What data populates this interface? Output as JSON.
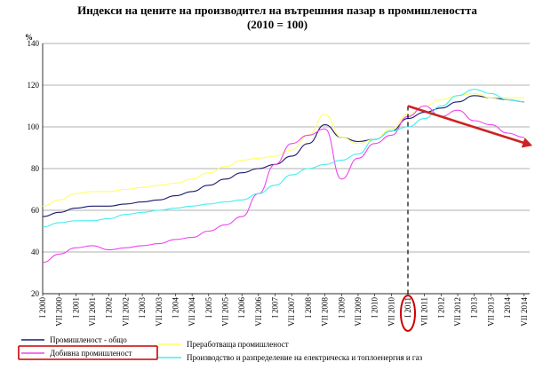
{
  "chart_data": {
    "type": "line",
    "title": "Индекси на цените на производител на вътрешния пазар в промишлеността",
    "subtitle": "(2010 = 100)",
    "ylabel": "%",
    "xlabel": "",
    "ylim": [
      20,
      140
    ],
    "yticks": [
      20,
      40,
      60,
      80,
      100,
      120,
      140
    ],
    "x_labels": [
      "I 2000",
      "VII 2000",
      "I 2001",
      "VII 2001",
      "I 2002",
      "VII 2002",
      "I 2003",
      "VII 2003",
      "I 2004",
      "VII 2004",
      "I 2005",
      "VII 2005",
      "I 2006",
      "VII 2006",
      "I 2007",
      "VII 2007",
      "I 2008",
      "VII 2008",
      "I 2009",
      "VII 2009",
      "I 2010",
      "VII 2010",
      "I 2011",
      "VII 2011",
      "I 2012",
      "VII 2012",
      "I 2013",
      "VII 2013",
      "I 2014",
      "VII 2014"
    ],
    "x": [
      "2000-01",
      "2000-07",
      "2001-01",
      "2001-07",
      "2002-01",
      "2002-07",
      "2003-01",
      "2003-07",
      "2004-01",
      "2004-07",
      "2005-01",
      "2005-07",
      "2006-01",
      "2006-07",
      "2007-01",
      "2007-07",
      "2008-01",
      "2008-07",
      "2009-01",
      "2009-07",
      "2010-01",
      "2010-07",
      "2011-01",
      "2011-07",
      "2012-01",
      "2012-07",
      "2013-01",
      "2013-07",
      "2014-01",
      "2014-07"
    ],
    "grid": true,
    "legend_position": "bottom",
    "series": [
      {
        "name": "Промишленост - общо",
        "color": "#1a1a6e",
        "values": [
          57,
          59,
          61,
          62,
          62,
          63,
          64,
          65,
          67,
          69,
          72,
          75,
          78,
          80,
          82,
          86,
          92,
          101,
          95,
          93,
          94,
          98,
          104,
          107,
          109,
          112,
          115,
          114,
          113,
          112
        ]
      },
      {
        "name": "Преработваща промишленост",
        "color": "#ffff66",
        "values": [
          62,
          65,
          68,
          69,
          69,
          70,
          71,
          72,
          73,
          75,
          78,
          81,
          84,
          85,
          86,
          89,
          96,
          106,
          95,
          92,
          94,
          99,
          106,
          110,
          113,
          115,
          116,
          114,
          114,
          114
        ]
      },
      {
        "name": "Добивна промишленост",
        "color": "#ee44ee",
        "values": [
          35,
          39,
          42,
          43,
          41,
          42,
          43,
          44,
          46,
          47,
          50,
          53,
          57,
          68,
          82,
          92,
          96,
          99,
          75,
          85,
          92,
          96,
          105,
          110,
          105,
          108,
          103,
          101,
          97,
          95
        ]
      },
      {
        "name": "Производство и разпределение на електрическа и топлоенергия и газ",
        "color": "#44eeee",
        "values": [
          52,
          54,
          55,
          55,
          56,
          58,
          59,
          60,
          61,
          62,
          63,
          64,
          65,
          68,
          72,
          77,
          80,
          82,
          84,
          87,
          94,
          98,
          100,
          104,
          110,
          115,
          118,
          116,
          113,
          112
        ]
      }
    ],
    "annotations": [
      {
        "type": "vertical-dashed-line",
        "x": "2011-01"
      },
      {
        "type": "circle-highlight",
        "label": "I 2011",
        "color": "#cc0000"
      },
      {
        "type": "trend-arrow",
        "from": {
          "x": "2011-01",
          "y": 110
        },
        "to": {
          "x": "2014-10",
          "y": 91
        },
        "color": "#cc2222"
      }
    ]
  },
  "legend": {
    "items": [
      {
        "label": "Промишленост - общо",
        "color": "#1a1a6e",
        "highlighted": false
      },
      {
        "label": "Преработваща промишленост",
        "color": "#ffff66",
        "highlighted": false
      },
      {
        "label": "Добивна промишленост",
        "color": "#ee44ee",
        "highlighted": true
      },
      {
        "label": "Производство и разпределение на електрическа и топлоенергия  и газ",
        "color": "#44eeee",
        "highlighted": false
      }
    ]
  },
  "colors": {
    "gridline": "#999999",
    "highlight": "#cc0000",
    "arrow": "#cc2222"
  }
}
